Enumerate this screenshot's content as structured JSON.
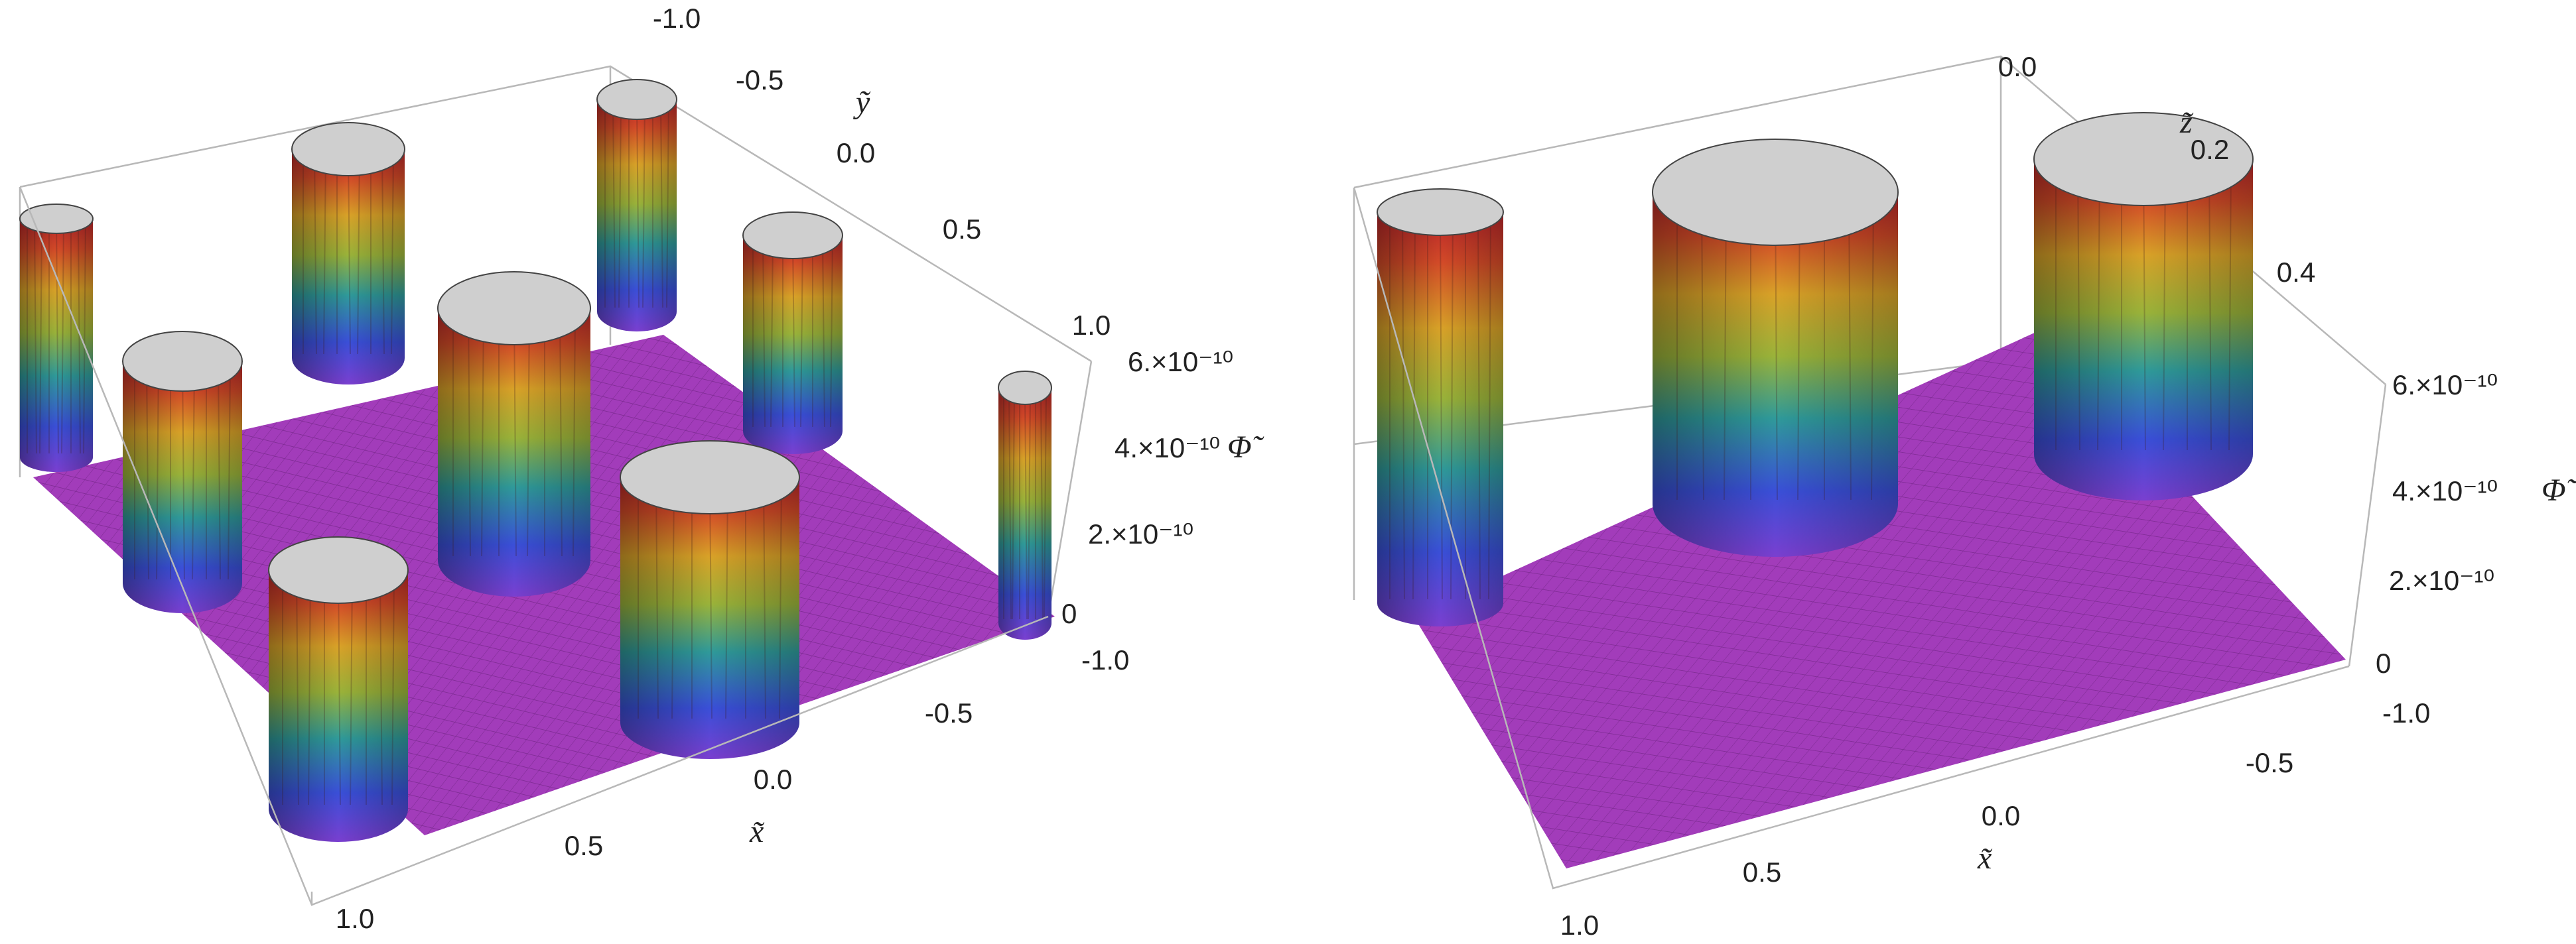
{
  "colors": {
    "surface_floor": "#a03ab8",
    "pillar_cap": "#cfcfcf",
    "box_line": "#b8b8b8",
    "text": "#222222"
  },
  "chart_data": [
    {
      "type": "surface3d",
      "title": "",
      "zlabel": "Φ̃",
      "xlabel": "x̃",
      "ylabel": "ỹ",
      "x_ticks": [
        "-1.0",
        "-0.5",
        "0.0",
        "0.5",
        "1.0"
      ],
      "y_ticks": [
        "-1.0",
        "-0.5",
        "0.0",
        "0.5",
        "1.0"
      ],
      "z_ticks": [
        "0",
        "2.×10⁻¹⁰",
        "4.×10⁻¹⁰",
        "6.×10⁻¹⁰"
      ],
      "xlim": [
        -1.0,
        1.0
      ],
      "ylim": [
        -1.0,
        1.0
      ],
      "zlim": [
        0,
        6e-10
      ]
    },
    {
      "type": "surface3d",
      "title": "",
      "zlabel": "Φ̃",
      "xlabel": "x̃",
      "ylabel": "z̃",
      "x_ticks": [
        "-1.0",
        "-0.5",
        "0.0",
        "0.5",
        "1.0"
      ],
      "y_ticks": [
        "0.0",
        "0.2",
        "0.4"
      ],
      "z_ticks": [
        "0",
        "2.×10⁻¹⁰",
        "4.×10⁻¹⁰",
        "6.×10⁻¹⁰"
      ],
      "xlim": [
        -1.0,
        1.0
      ],
      "ylim": [
        0.0,
        0.5
      ],
      "zlim": [
        0,
        6e-10
      ]
    }
  ]
}
